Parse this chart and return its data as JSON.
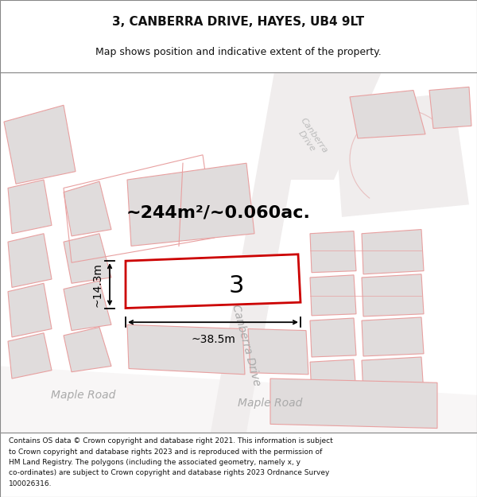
{
  "title": "3, CANBERRA DRIVE, HAYES, UB4 9LT",
  "subtitle": "Map shows position and indicative extent of the property.",
  "area_text": "~244m²/~0.060ac.",
  "width_label": "~38.5m",
  "height_label": "~14.3m",
  "plot_number": "3",
  "footer_lines": [
    "Contains OS data © Crown copyright and database right 2021. This information is subject",
    "to Crown copyright and database rights 2023 and is reproduced with the permission of",
    "HM Land Registry. The polygons (including the associated geometry, namely x, y",
    "co-ordinates) are subject to Crown copyright and database rights 2023 Ordnance Survey",
    "100026316."
  ],
  "map_bg": "#f5f2f2",
  "road_bg": "#ffffff",
  "building_fill": "#e0dcdc",
  "building_edge": "#e8a0a0",
  "plot_edge": "#cc0000",
  "plot_fill": "#ffffff",
  "road_label_color": "#aaaaaa",
  "title_color": "#111111",
  "footer_color": "#111111",
  "title_fs": 11,
  "subtitle_fs": 9,
  "area_fs": 16,
  "plot_num_fs": 22,
  "road_label_fs": 10,
  "footer_fs": 6.5
}
